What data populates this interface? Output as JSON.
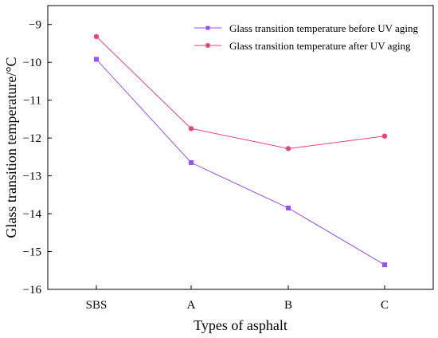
{
  "chart_data": {
    "type": "line",
    "categories": [
      "SBS",
      "A",
      "B",
      "C"
    ],
    "xlabel": "Types of asphalt",
    "ylabel": "Glass transition temperature/°C",
    "ylim": [
      -16,
      -8.5
    ],
    "yticks": [
      -16,
      -15,
      -14,
      -13,
      -12,
      -11,
      -10,
      -9
    ],
    "ytick_labels": [
      "−16",
      "−15",
      "−14",
      "−13",
      "−12",
      "−11",
      "−10",
      "−9"
    ],
    "grid": false,
    "legend_position": "top-right",
    "series": [
      {
        "name": "Glass transition temperature before UV aging",
        "values": [
          -9.92,
          -12.65,
          -13.85,
          -15.35
        ],
        "color": "#9b4dff",
        "marker": "square"
      },
      {
        "name": "Glass transition temperature after UV aging",
        "values": [
          -9.32,
          -11.75,
          -12.28,
          -11.95
        ],
        "color": "#e8447a",
        "marker": "circle"
      }
    ]
  }
}
